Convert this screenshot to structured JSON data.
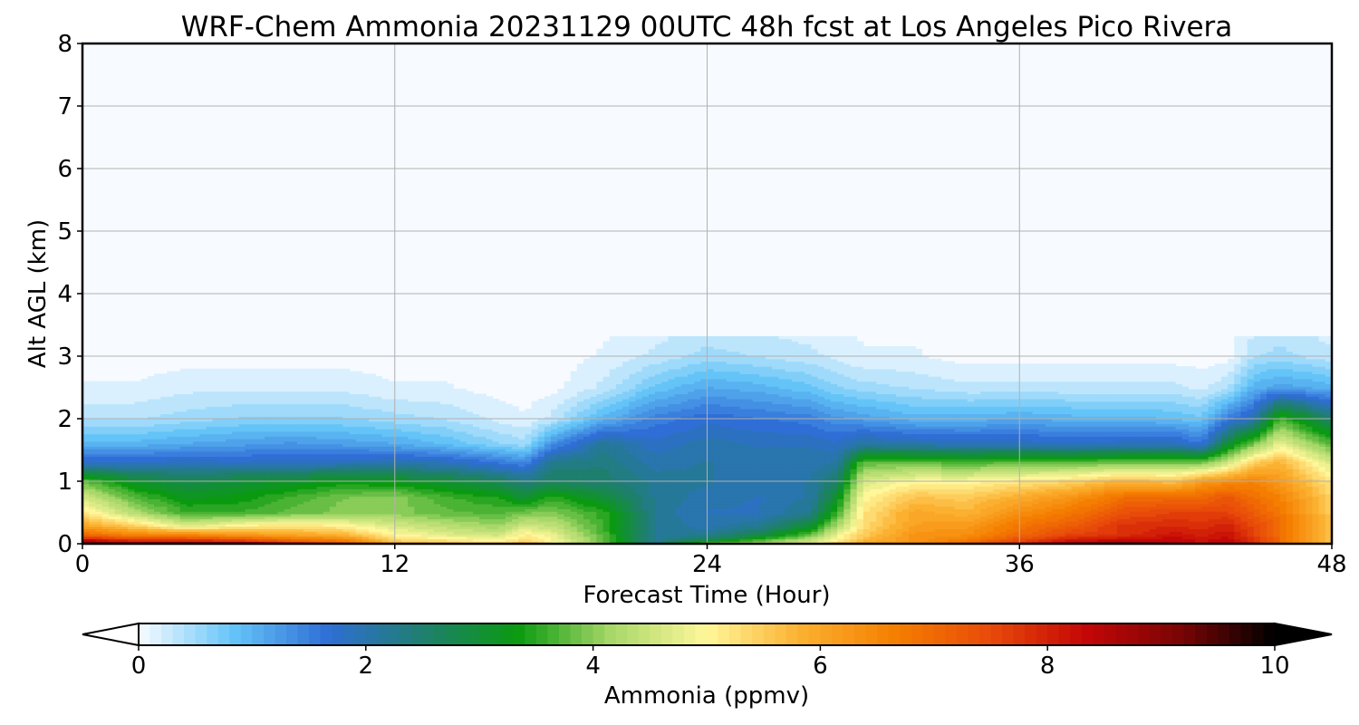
{
  "chart_data": {
    "type": "heatmap",
    "title": "WRF-Chem Ammonia  20231129 00UTC 48h fcst at Los Angeles Pico Rivera",
    "xlabel": "Forecast Time (Hour)",
    "ylabel": "Alt AGL (km)",
    "xlim": [
      0,
      48
    ],
    "ylim": [
      0,
      8
    ],
    "xticks": [
      0,
      12,
      24,
      36,
      48
    ],
    "yticks": [
      0,
      1,
      2,
      3,
      4,
      5,
      6,
      7,
      8
    ],
    "grid": true,
    "colorbar": {
      "label": "Ammonia  (ppmv)",
      "min": 0,
      "max": 10,
      "ticks": [
        0,
        2,
        4,
        6,
        8,
        10
      ],
      "extend": "both",
      "colors": [
        "#f7fbff",
        "#64c4f8",
        "#2f6ed6",
        "#1f7f6f",
        "#0a9a10",
        "#a9d86a",
        "#fff79a",
        "#fbb030",
        "#f57e00",
        "#e84a0a",
        "#c40606",
        "#7a0505",
        "#000000"
      ]
    },
    "time_hours": [
      0,
      2,
      4,
      6,
      8,
      10,
      12,
      14,
      16,
      17,
      18,
      20,
      22,
      24,
      26,
      28,
      29,
      30,
      32,
      34,
      36,
      38,
      40,
      42,
      43,
      44,
      45,
      46,
      48
    ],
    "altitude_km": [
      0.0,
      0.05,
      0.15,
      0.3,
      0.5,
      0.75,
      1.0,
      1.3,
      1.6,
      2.0,
      2.5,
      3.0,
      4.0
    ],
    "values_ppmv": [
      [
        9.5,
        8.5,
        7.0,
        6.0,
        5.2,
        4.6,
        3.8,
        1.8,
        1.0,
        0.4,
        0.1,
        0,
        0
      ],
      [
        9.2,
        8.0,
        6.5,
        5.4,
        4.3,
        3.7,
        3.1,
        1.8,
        1.0,
        0.4,
        0.1,
        0,
        0
      ],
      [
        9.6,
        8.0,
        6.5,
        4.6,
        3.6,
        3.2,
        2.8,
        1.9,
        1.1,
        0.5,
        0.2,
        0,
        0
      ],
      [
        9.3,
        7.8,
        6.2,
        5.0,
        3.6,
        3.3,
        3.0,
        1.8,
        1.2,
        0.6,
        0.2,
        0,
        0
      ],
      [
        8.3,
        7.2,
        6.0,
        5.2,
        3.8,
        3.6,
        3.1,
        1.9,
        1.3,
        0.6,
        0.2,
        0,
        0
      ],
      [
        7.6,
        6.8,
        5.8,
        5.0,
        4.0,
        3.9,
        3.3,
        1.9,
        1.2,
        0.6,
        0.2,
        0,
        0
      ],
      [
        6.0,
        5.5,
        5.0,
        4.6,
        4.0,
        4.0,
        3.2,
        2.0,
        1.1,
        0.5,
        0.1,
        0,
        0
      ],
      [
        5.6,
        5.3,
        4.7,
        4.3,
        3.8,
        3.6,
        3.0,
        1.9,
        0.9,
        0.4,
        0.1,
        0,
        0
      ],
      [
        5.4,
        5.0,
        4.5,
        4.1,
        3.7,
        3.4,
        2.7,
        1.6,
        0.6,
        0.2,
        0,
        0,
        0
      ],
      [
        5.8,
        5.4,
        5.1,
        4.5,
        3.9,
        3.0,
        2.4,
        1.4,
        0.5,
        0.1,
        0,
        0,
        0
      ],
      [
        5.2,
        5.0,
        4.8,
        4.4,
        4.0,
        3.5,
        2.6,
        2.3,
        1.3,
        0.3,
        0,
        0,
        0
      ],
      [
        3.9,
        3.8,
        3.7,
        3.6,
        3.5,
        3.0,
        2.5,
        2.4,
        2.2,
        1.0,
        0.3,
        0.1,
        0
      ],
      [
        2.2,
        2.2,
        2.2,
        2.2,
        2.2,
        2.2,
        2.2,
        2.0,
        1.8,
        1.5,
        0.8,
        0.3,
        0
      ],
      [
        4.0,
        3.0,
        2.2,
        2.0,
        1.9,
        2.0,
        2.1,
        2.1,
        2.0,
        1.7,
        1.1,
        0.5,
        0
      ],
      [
        4.4,
        3.8,
        2.8,
        2.2,
        1.9,
        1.9,
        2.0,
        2.0,
        1.9,
        1.6,
        1.0,
        0.4,
        0
      ],
      [
        5.0,
        4.5,
        3.8,
        3.0,
        2.3,
        2.1,
        2.1,
        2.0,
        1.9,
        1.5,
        0.8,
        0.3,
        0
      ],
      [
        5.5,
        5.2,
        4.8,
        4.2,
        3.6,
        3.1,
        2.6,
        2.1,
        1.8,
        1.3,
        0.6,
        0.2,
        0
      ],
      [
        6.0,
        5.8,
        5.5,
        5.3,
        5.2,
        5.0,
        4.6,
        3.8,
        2.1,
        1.2,
        0.5,
        0.1,
        0
      ],
      [
        6.4,
        6.3,
        6.3,
        6.1,
        6.0,
        5.6,
        5.0,
        3.8,
        2.0,
        1.0,
        0.4,
        0.1,
        0
      ],
      [
        7.2,
        6.8,
        6.4,
        6.2,
        5.8,
        5.5,
        5.0,
        3.7,
        1.9,
        1.0,
        0.3,
        0,
        0
      ],
      [
        7.8,
        7.6,
        7.0,
        6.8,
        6.4,
        5.9,
        5.2,
        3.8,
        1.9,
        1.1,
        0.3,
        0,
        0
      ],
      [
        8.8,
        8.2,
        7.6,
        7.2,
        6.8,
        6.3,
        5.4,
        3.8,
        1.8,
        1.0,
        0.3,
        0,
        0
      ],
      [
        9.6,
        8.4,
        7.8,
        7.8,
        7.4,
        6.9,
        5.8,
        3.9,
        1.9,
        1.0,
        0.3,
        0,
        0
      ],
      [
        8.6,
        8.4,
        8.2,
        7.9,
        7.6,
        7.0,
        5.6,
        3.9,
        1.9,
        0.9,
        0.3,
        0,
        0
      ],
      [
        8.2,
        8.2,
        8.0,
        7.8,
        7.6,
        7.0,
        6.2,
        3.9,
        1.6,
        0.8,
        0.2,
        0,
        0
      ],
      [
        8.4,
        8.4,
        8.2,
        8.0,
        7.6,
        7.3,
        6.4,
        4.5,
        3.0,
        1.5,
        0.4,
        0,
        0
      ],
      [
        8.0,
        7.8,
        7.6,
        7.5,
        7.2,
        6.9,
        6.6,
        5.5,
        3.9,
        2.0,
        1.0,
        0.4,
        0
      ],
      [
        7.0,
        7.0,
        7.0,
        7.0,
        6.8,
        6.6,
        6.2,
        5.8,
        4.8,
        3.7,
        1.2,
        0.5,
        0
      ],
      [
        5.6,
        5.6,
        5.6,
        5.5,
        5.5,
        5.4,
        5.2,
        4.6,
        3.7,
        2.5,
        1.0,
        0.3,
        0
      ]
    ]
  }
}
